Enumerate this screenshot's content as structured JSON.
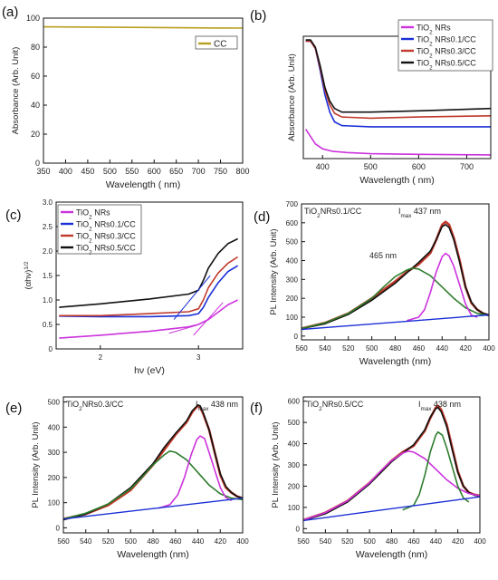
{
  "figure": {
    "background": "#ffffff"
  },
  "chart_data": [
    {
      "panel": "(a)",
      "type": "line",
      "xlabel": "Wavelength ( nm)",
      "ylabel": "Absorbance (Arb. Unit)",
      "xlim": [
        350,
        800
      ],
      "ylim": [
        0,
        100
      ],
      "xticks": [
        350,
        400,
        450,
        500,
        550,
        600,
        650,
        700,
        750,
        800
      ],
      "yticks": [
        0,
        20,
        40,
        60,
        80,
        100
      ],
      "grid": false,
      "legend_position": "top-right",
      "series": [
        {
          "name": "CC",
          "color": "#b8a020",
          "x": [
            350,
            450,
            550,
            650,
            750,
            800
          ],
          "y": [
            94,
            93.8,
            93.6,
            93.4,
            93.2,
            93.1
          ]
        }
      ]
    },
    {
      "panel": "(b)",
      "type": "line",
      "xlabel": "Wavelength ( nm)",
      "ylabel": "Absorbance (Arb. Unit)",
      "xlim": [
        360,
        750
      ],
      "xticks": [
        400,
        500,
        600,
        700
      ],
      "ylim": [
        0,
        1
      ],
      "grid": false,
      "legend_position": "top-right",
      "series": [
        {
          "name": "TiO2 NRs",
          "name_base": "TiO",
          "name_sub": "2",
          "name_rest": " NRs",
          "color": "#cc33dd",
          "x": [
            365,
            375,
            385,
            400,
            420,
            450,
            500,
            600,
            750
          ],
          "y": [
            0.24,
            0.18,
            0.12,
            0.08,
            0.06,
            0.05,
            0.04,
            0.035,
            0.03
          ]
        },
        {
          "name": "TiO2 NRs0.1/CC",
          "name_base": "TiO",
          "name_sub": "2",
          "name_rest": " NRs0.1/CC",
          "color": "#1a2fd6",
          "x": [
            365,
            375,
            385,
            395,
            405,
            415,
            425,
            440,
            500,
            600,
            750
          ],
          "y": [
            0.96,
            0.96,
            0.9,
            0.72,
            0.52,
            0.38,
            0.3,
            0.27,
            0.26,
            0.26,
            0.26
          ]
        },
        {
          "name": "TiO2 NRs0.3/CC",
          "name_base": "TiO",
          "name_sub": "2",
          "name_rest": " NRs0.3/CC",
          "color": "#c0392b",
          "x": [
            365,
            375,
            385,
            395,
            405,
            415,
            425,
            440,
            500,
            600,
            750
          ],
          "y": [
            0.96,
            0.96,
            0.9,
            0.74,
            0.56,
            0.44,
            0.37,
            0.34,
            0.33,
            0.34,
            0.35
          ]
        },
        {
          "name": "TiO2 NRs0.5/CC",
          "name_base": "TiO",
          "name_sub": "2",
          "name_rest": " NRs0.5/CC",
          "color": "#111111",
          "x": [
            365,
            375,
            385,
            395,
            405,
            415,
            425,
            440,
            500,
            600,
            750
          ],
          "y": [
            0.97,
            0.97,
            0.91,
            0.76,
            0.58,
            0.47,
            0.41,
            0.38,
            0.38,
            0.39,
            0.41
          ]
        }
      ]
    },
    {
      "panel": "(c)",
      "type": "line",
      "xlabel": "hν (eV)",
      "ylabel": "(αhν)1/2",
      "ylabel_base": "(αhν)",
      "ylabel_sup": "1/2",
      "xlim": [
        1.55,
        3.45
      ],
      "xticks": [
        2,
        3
      ],
      "ylim": [
        0,
        3
      ],
      "yticks": [
        0,
        0.5,
        1.0,
        1.5,
        2.0,
        2.5,
        3.0
      ],
      "ytick_labels": [
        "0",
        "0.5",
        "1.0",
        "1.5",
        "2.0",
        "2.5",
        "3.0"
      ],
      "grid": false,
      "legend_position": "top-left",
      "series": [
        {
          "name": "TiO2 NRs",
          "name_base": "TiO",
          "name_sub": "2",
          "name_rest": " NRs",
          "color": "#cc33dd",
          "x": [
            1.58,
            2.0,
            2.5,
            2.9,
            3.0,
            3.1,
            3.2,
            3.3,
            3.4
          ],
          "y": [
            0.22,
            0.28,
            0.36,
            0.45,
            0.5,
            0.6,
            0.75,
            0.9,
            1.0
          ]
        },
        {
          "name": "TiO2 NRs0.1/CC",
          "name_base": "TiO",
          "name_sub": "2",
          "name_rest": " NRs0.1/CC",
          "color": "#1a2fd6",
          "x": [
            1.58,
            2.0,
            2.5,
            2.9,
            3.0,
            3.05,
            3.1,
            3.2,
            3.3,
            3.4
          ],
          "y": [
            0.67,
            0.66,
            0.66,
            0.68,
            0.72,
            0.85,
            1.05,
            1.35,
            1.58,
            1.7
          ]
        },
        {
          "name": "TiO2 NRs0.3/CC",
          "name_base": "TiO",
          "name_sub": "2",
          "name_rest": " NRs0.3/CC",
          "color": "#c0392b",
          "x": [
            1.58,
            2.0,
            2.5,
            2.9,
            3.0,
            3.05,
            3.1,
            3.2,
            3.3,
            3.4
          ],
          "y": [
            0.68,
            0.68,
            0.72,
            0.76,
            0.82,
            1.0,
            1.25,
            1.55,
            1.75,
            1.88
          ]
        },
        {
          "name": "TiO2 NRs0.5/CC",
          "name_base": "TiO",
          "name_sub": "2",
          "name_rest": " NRs0.5/CC",
          "color": "#111111",
          "x": [
            1.58,
            2.0,
            2.5,
            2.9,
            3.0,
            3.05,
            3.1,
            3.2,
            3.3,
            3.4
          ],
          "y": [
            0.85,
            0.92,
            1.02,
            1.12,
            1.2,
            1.4,
            1.65,
            1.95,
            2.15,
            2.25
          ]
        }
      ],
      "annotations": [
        {
          "note": "tangent fit lines",
          "color": "#1a2fd6",
          "x": [
            2.75,
            3.12
          ],
          "y": [
            0.6,
            1.5
          ]
        },
        {
          "note": "tangent fit lines",
          "color": "#cc33dd",
          "x": [
            2.95,
            3.25
          ],
          "y": [
            0.28,
            0.95
          ]
        },
        {
          "note": "tangent fit lines",
          "color": "#cc33dd",
          "x": [
            2.7,
            2.98
          ],
          "y": [
            0.32,
            0.48
          ]
        }
      ]
    },
    {
      "panel": "(d)",
      "type": "line",
      "sample_base": "TiO",
      "sample_sub": "2",
      "sample_rest": "NRs0.1/CC",
      "xlabel": "Wavelength (nm)",
      "ylabel": "PL Intensity (Arb. Unit)",
      "x_reversed": true,
      "xlim": [
        560,
        400
      ],
      "xticks": [
        560,
        540,
        520,
        500,
        480,
        460,
        440,
        420,
        400
      ],
      "ylim": [
        -20,
        700
      ],
      "yticks": [
        0,
        100,
        200,
        300,
        400,
        500,
        600,
        700
      ],
      "grid": false,
      "peaks": [
        {
          "label_base": "I",
          "label_sub": "max",
          "label_rest": " 437 nm"
        },
        {
          "label": "465 nm"
        }
      ],
      "series": [
        {
          "role": "measured",
          "color": "#c0392b",
          "x": [
            560,
            540,
            520,
            500,
            480,
            470,
            460,
            450,
            445,
            440,
            437,
            434,
            430,
            425,
            420,
            415,
            410,
            405,
            400
          ],
          "y": [
            40,
            70,
            120,
            200,
            290,
            340,
            380,
            440,
            510,
            590,
            605,
            590,
            520,
            400,
            260,
            175,
            140,
            120,
            110
          ]
        },
        {
          "role": "fit",
          "color": "#111111",
          "x": [
            560,
            540,
            520,
            500,
            480,
            470,
            460,
            450,
            445,
            440,
            437,
            434,
            430,
            425,
            420,
            415,
            410,
            405,
            400
          ],
          "y": [
            40,
            65,
            115,
            190,
            280,
            335,
            390,
            450,
            510,
            580,
            590,
            575,
            510,
            390,
            260,
            180,
            140,
            120,
            112
          ]
        },
        {
          "role": "component-465",
          "color": "#2d7d2d",
          "x": [
            560,
            540,
            520,
            500,
            490,
            480,
            470,
            465,
            460,
            450,
            440,
            430,
            420,
            410,
            400
          ],
          "y": [
            40,
            70,
            120,
            200,
            260,
            315,
            350,
            360,
            355,
            320,
            260,
            200,
            150,
            120,
            108
          ]
        },
        {
          "role": "component-437",
          "color": "#cc33dd",
          "x": [
            470,
            460,
            455,
            450,
            445,
            440,
            437,
            434,
            430,
            425,
            420,
            415,
            410
          ],
          "y": [
            82,
            100,
            140,
            230,
            340,
            420,
            438,
            425,
            370,
            270,
            170,
            110,
            100
          ]
        },
        {
          "role": "baseline",
          "color": "#1a2fd6",
          "x": [
            560,
            400
          ],
          "y": [
            35,
            112
          ]
        }
      ]
    },
    {
      "panel": "(e)",
      "type": "line",
      "sample_base": "TiO",
      "sample_sub": "2",
      "sample_rest": "NRs0.3/CC",
      "xlabel": "Wavelength (nm)",
      "ylabel": "PL Intensity (Arb. Unit)",
      "x_reversed": true,
      "xlim": [
        560,
        400
      ],
      "xticks": [
        560,
        540,
        520,
        500,
        480,
        460,
        440,
        420,
        400
      ],
      "ylim": [
        -20,
        520
      ],
      "yticks": [
        0,
        100,
        200,
        300,
        400,
        500
      ],
      "grid": false,
      "peaks": [
        {
          "label_base": "I",
          "label_sub": "max",
          "label_rest": " 438 nm"
        }
      ],
      "series": [
        {
          "role": "measured",
          "color": "#c0392b",
          "x": [
            560,
            540,
            520,
            500,
            480,
            470,
            460,
            450,
            445,
            440,
            438,
            435,
            430,
            425,
            420,
            415,
            410,
            405,
            400
          ],
          "y": [
            35,
            55,
            90,
            150,
            250,
            310,
            370,
            420,
            460,
            485,
            480,
            450,
            390,
            300,
            210,
            160,
            140,
            125,
            118
          ]
        },
        {
          "role": "fit",
          "color": "#111111",
          "x": [
            560,
            540,
            520,
            500,
            480,
            470,
            460,
            450,
            445,
            440,
            438,
            435,
            430,
            425,
            420,
            415,
            410,
            405,
            400
          ],
          "y": [
            32,
            55,
            95,
            160,
            255,
            320,
            375,
            425,
            465,
            488,
            485,
            455,
            390,
            300,
            215,
            165,
            140,
            125,
            118
          ]
        },
        {
          "role": "component-465",
          "color": "#2d7d2d",
          "x": [
            560,
            540,
            520,
            500,
            490,
            480,
            470,
            465,
            460,
            450,
            440,
            430,
            420,
            410,
            400
          ],
          "y": [
            35,
            58,
            95,
            155,
            200,
            250,
            290,
            305,
            300,
            270,
            220,
            170,
            135,
            118,
            112
          ]
        },
        {
          "role": "component-438",
          "color": "#cc33dd",
          "x": [
            475,
            465,
            458,
            452,
            446,
            441,
            438,
            434,
            430,
            425,
            420,
            415,
            410
          ],
          "y": [
            78,
            92,
            130,
            200,
            290,
            350,
            365,
            355,
            300,
            230,
            160,
            120,
            108
          ]
        },
        {
          "role": "baseline",
          "color": "#1a2fd6",
          "x": [
            560,
            400
          ],
          "y": [
            35,
            118
          ]
        }
      ]
    },
    {
      "panel": "(f)",
      "type": "line",
      "sample_base": "TiO",
      "sample_sub": "2",
      "sample_rest": "NRs0.5/CC",
      "xlabel": "Wavelength (nm)",
      "ylabel": "PL Intensity (Arb. Unit)",
      "x_reversed": true,
      "xlim": [
        560,
        400
      ],
      "xticks": [
        560,
        540,
        520,
        500,
        480,
        460,
        440,
        420,
        400
      ],
      "ylim": [
        -20,
        620
      ],
      "yticks": [
        0,
        100,
        200,
        300,
        400,
        500,
        600
      ],
      "grid": false,
      "peaks": [
        {
          "label_base": "I",
          "label_sub": "max",
          "label_rest": " 438 nm"
        }
      ],
      "series": [
        {
          "role": "measured",
          "color": "#c0392b",
          "x": [
            560,
            540,
            520,
            500,
            480,
            470,
            460,
            450,
            445,
            440,
            438,
            435,
            430,
            425,
            420,
            415,
            410,
            405,
            400
          ],
          "y": [
            40,
            75,
            130,
            215,
            320,
            360,
            390,
            460,
            520,
            570,
            578,
            560,
            490,
            380,
            270,
            200,
            170,
            160,
            155
          ]
        },
        {
          "role": "fit",
          "color": "#111111",
          "x": [
            560,
            540,
            520,
            500,
            480,
            470,
            460,
            450,
            445,
            440,
            438,
            435,
            430,
            425,
            420,
            415,
            410,
            405,
            400
          ],
          "y": [
            38,
            70,
            125,
            210,
            315,
            355,
            395,
            465,
            525,
            565,
            570,
            550,
            480,
            370,
            265,
            200,
            170,
            158,
            153
          ]
        },
        {
          "role": "component-465",
          "color": "#cc33dd",
          "x": [
            560,
            540,
            520,
            500,
            490,
            480,
            470,
            465,
            460,
            450,
            440,
            430,
            420,
            410,
            400
          ],
          "y": [
            40,
            75,
            130,
            215,
            270,
            320,
            355,
            365,
            360,
            330,
            280,
            230,
            190,
            165,
            155
          ]
        },
        {
          "role": "component-438",
          "color": "#2d7d2d",
          "x": [
            470,
            460,
            455,
            450,
            445,
            440,
            438,
            434,
            430,
            425,
            420,
            415,
            410
          ],
          "y": [
            88,
            110,
            160,
            250,
            360,
            440,
            455,
            440,
            380,
            290,
            200,
            145,
            125
          ]
        },
        {
          "role": "baseline",
          "color": "#1a2fd6",
          "x": [
            560,
            400
          ],
          "y": [
            38,
            150
          ]
        }
      ]
    }
  ]
}
